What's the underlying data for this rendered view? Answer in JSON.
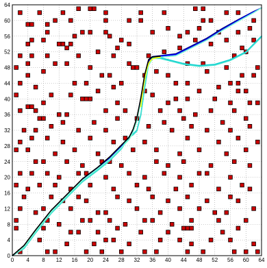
{
  "chart_data": {
    "type": "scatter",
    "title": "",
    "xlabel": "",
    "ylabel": "",
    "xlim": [
      0,
      64
    ],
    "ylim": [
      0,
      64
    ],
    "grid": true,
    "xticks": [
      "0",
      "4",
      "8",
      "12",
      "16",
      "20",
      "24",
      "28",
      "32",
      "36",
      "40",
      "44",
      "48",
      "52",
      "56",
      "60",
      "64"
    ],
    "yticks": [
      "0",
      "4",
      "8",
      "12",
      "16",
      "20",
      "24",
      "28",
      "32",
      "36",
      "40",
      "44",
      "48",
      "52",
      "56",
      "60",
      "64"
    ],
    "colors": {
      "obstacle_fill": "#cc0000",
      "obstacle_edge": "#000000",
      "paths": [
        "#00008b",
        "#0000ff",
        "#00ced1",
        "#40e0d0",
        "#7fffd4",
        "#ffff00",
        "#000000"
      ]
    },
    "obstacles": [
      [
        2,
        62
      ],
      [
        7,
        62
      ],
      [
        13,
        62
      ],
      [
        17,
        63
      ],
      [
        20,
        63
      ],
      [
        21,
        63
      ],
      [
        24,
        62
      ],
      [
        33,
        62
      ],
      [
        39,
        62
      ],
      [
        47,
        63
      ],
      [
        49,
        63
      ],
      [
        55,
        62
      ],
      [
        58,
        62
      ],
      [
        4,
        59
      ],
      [
        5,
        59
      ],
      [
        9,
        59
      ],
      [
        11,
        60
      ],
      [
        15,
        60
      ],
      [
        24,
        60
      ],
      [
        30,
        60
      ],
      [
        33,
        60
      ],
      [
        49,
        60
      ],
      [
        51,
        60
      ],
      [
        62,
        60
      ],
      [
        9,
        57
      ],
      [
        18,
        57
      ],
      [
        20,
        57
      ],
      [
        24,
        57
      ],
      [
        36,
        57
      ],
      [
        40,
        58
      ],
      [
        45,
        57
      ],
      [
        48,
        58
      ],
      [
        53,
        57
      ],
      [
        58,
        57
      ],
      [
        61,
        58
      ],
      [
        5,
        55
      ],
      [
        8,
        55
      ],
      [
        16,
        56
      ],
      [
        25,
        56
      ],
      [
        28,
        55
      ],
      [
        43,
        56
      ],
      [
        47,
        55
      ],
      [
        55,
        55
      ],
      [
        62,
        55
      ],
      [
        4,
        54
      ],
      [
        12,
        54
      ],
      [
        13,
        54
      ],
      [
        14,
        53
      ],
      [
        15,
        54
      ],
      [
        27,
        53
      ],
      [
        30,
        54
      ],
      [
        43,
        53
      ],
      [
        51,
        54
      ],
      [
        59,
        53
      ],
      [
        2,
        51
      ],
      [
        5,
        51
      ],
      [
        9,
        51
      ],
      [
        17,
        51
      ],
      [
        22,
        52
      ],
      [
        26,
        51
      ],
      [
        35,
        51
      ],
      [
        39,
        52
      ],
      [
        57,
        51
      ],
      [
        60,
        52
      ],
      [
        1,
        48
      ],
      [
        4,
        49
      ],
      [
        11,
        49
      ],
      [
        14,
        49
      ],
      [
        20,
        48
      ],
      [
        30,
        49
      ],
      [
        31,
        48
      ],
      [
        32,
        48
      ],
      [
        45,
        49
      ],
      [
        49,
        49
      ],
      [
        55,
        48
      ],
      [
        63,
        48
      ],
      [
        4,
        46
      ],
      [
        8,
        47
      ],
      [
        23,
        46
      ],
      [
        25,
        46
      ],
      [
        34,
        46
      ],
      [
        37,
        47
      ],
      [
        40,
        46
      ],
      [
        50,
        47
      ],
      [
        59,
        46
      ],
      [
        62,
        46
      ],
      [
        2,
        44
      ],
      [
        6,
        43
      ],
      [
        16,
        44
      ],
      [
        19,
        44
      ],
      [
        26,
        43
      ],
      [
        28,
        44
      ],
      [
        42,
        44
      ],
      [
        45,
        44
      ],
      [
        53,
        43
      ],
      [
        56,
        44
      ],
      [
        58,
        44
      ],
      [
        1,
        41
      ],
      [
        10,
        41
      ],
      [
        15,
        41
      ],
      [
        22,
        42
      ],
      [
        34,
        42
      ],
      [
        36,
        41
      ],
      [
        48,
        42
      ],
      [
        58,
        42
      ],
      [
        60,
        42
      ],
      [
        4,
        38
      ],
      [
        5,
        38
      ],
      [
        8,
        39
      ],
      [
        18,
        40
      ],
      [
        19,
        40
      ],
      [
        20,
        40
      ],
      [
        27,
        39
      ],
      [
        40,
        39
      ],
      [
        42,
        40
      ],
      [
        45,
        40
      ],
      [
        52,
        40
      ],
      [
        56,
        39
      ],
      [
        61,
        39
      ],
      [
        63,
        39
      ],
      [
        2,
        37
      ],
      [
        6,
        37
      ],
      [
        12,
        36
      ],
      [
        14,
        36
      ],
      [
        24,
        37
      ],
      [
        29,
        37
      ],
      [
        38,
        37
      ],
      [
        43,
        37
      ],
      [
        47,
        36
      ],
      [
        51,
        37
      ],
      [
        57,
        37
      ],
      [
        7,
        35
      ],
      [
        8,
        35
      ],
      [
        13,
        34
      ],
      [
        21,
        34
      ],
      [
        27,
        35
      ],
      [
        32,
        35
      ],
      [
        39,
        34
      ],
      [
        44,
        35
      ],
      [
        54,
        34
      ],
      [
        60,
        35
      ],
      [
        3,
        32
      ],
      [
        6,
        32
      ],
      [
        10,
        33
      ],
      [
        17,
        32
      ],
      [
        24,
        32
      ],
      [
        35,
        33
      ],
      [
        41,
        32
      ],
      [
        46,
        33
      ],
      [
        50,
        32
      ],
      [
        56,
        32
      ],
      [
        61,
        33
      ],
      [
        2,
        29
      ],
      [
        5,
        30
      ],
      [
        9,
        30
      ],
      [
        13,
        29
      ],
      [
        20,
        30
      ],
      [
        26,
        29
      ],
      [
        29,
        30
      ],
      [
        34,
        29
      ],
      [
        45,
        30
      ],
      [
        53,
        29
      ],
      [
        58,
        30
      ],
      [
        63,
        29
      ],
      [
        1,
        27
      ],
      [
        4,
        27
      ],
      [
        11,
        26
      ],
      [
        16,
        27
      ],
      [
        22,
        26
      ],
      [
        31,
        27
      ],
      [
        37,
        27
      ],
      [
        43,
        26
      ],
      [
        48,
        27
      ],
      [
        55,
        26
      ],
      [
        60,
        27
      ],
      [
        6,
        24
      ],
      [
        8,
        24
      ],
      [
        14,
        24
      ],
      [
        18,
        23
      ],
      [
        23,
        24
      ],
      [
        25,
        24
      ],
      [
        28,
        23
      ],
      [
        37,
        24
      ],
      [
        40,
        23
      ],
      [
        44,
        24
      ],
      [
        51,
        23
      ],
      [
        57,
        24
      ],
      [
        61,
        23
      ],
      [
        2,
        21
      ],
      [
        5,
        21
      ],
      [
        9,
        21
      ],
      [
        12,
        20
      ],
      [
        17,
        21
      ],
      [
        19,
        21
      ],
      [
        24,
        20
      ],
      [
        30,
        21
      ],
      [
        34,
        20
      ],
      [
        39,
        21
      ],
      [
        43,
        20
      ],
      [
        48,
        21
      ],
      [
        50,
        21
      ],
      [
        56,
        20
      ],
      [
        1,
        18
      ],
      [
        4,
        17
      ],
      [
        7,
        18
      ],
      [
        11,
        18
      ],
      [
        15,
        17
      ],
      [
        20,
        18
      ],
      [
        26,
        17
      ],
      [
        32,
        18
      ],
      [
        35,
        17
      ],
      [
        42,
        17
      ],
      [
        46,
        18
      ],
      [
        53,
        17
      ],
      [
        59,
        18
      ],
      [
        61,
        17
      ],
      [
        3,
        15
      ],
      [
        10,
        15
      ],
      [
        13,
        14
      ],
      [
        17,
        15
      ],
      [
        19,
        14
      ],
      [
        27,
        15
      ],
      [
        30,
        14
      ],
      [
        36,
        15
      ],
      [
        40,
        14
      ],
      [
        45,
        15
      ],
      [
        50,
        14
      ],
      [
        56,
        15
      ],
      [
        58,
        14
      ],
      [
        2,
        12
      ],
      [
        6,
        11
      ],
      [
        8,
        12
      ],
      [
        15,
        12
      ],
      [
        22,
        11
      ],
      [
        24,
        11
      ],
      [
        32,
        12
      ],
      [
        38,
        11
      ],
      [
        43,
        12
      ],
      [
        48,
        12
      ],
      [
        52,
        11
      ],
      [
        55,
        11
      ],
      [
        62,
        12
      ],
      [
        1,
        9
      ],
      [
        9,
        9
      ],
      [
        12,
        8
      ],
      [
        18,
        9
      ],
      [
        20,
        9
      ],
      [
        25,
        9
      ],
      [
        29,
        8
      ],
      [
        34,
        9
      ],
      [
        36,
        9
      ],
      [
        41,
        8
      ],
      [
        46,
        9
      ],
      [
        53,
        9
      ],
      [
        60,
        9
      ],
      [
        1,
        7
      ],
      [
        8,
        7
      ],
      [
        15,
        6
      ],
      [
        17,
        6
      ],
      [
        22,
        6
      ],
      [
        27,
        7
      ],
      [
        33,
        6
      ],
      [
        40,
        6
      ],
      [
        44,
        7
      ],
      [
        45,
        7
      ],
      [
        46,
        7
      ],
      [
        54,
        6
      ],
      [
        58,
        7
      ],
      [
        7,
        4
      ],
      [
        14,
        3
      ],
      [
        21,
        3
      ],
      [
        24,
        4
      ],
      [
        26,
        4
      ],
      [
        30,
        3
      ],
      [
        38,
        4
      ],
      [
        43,
        4
      ],
      [
        46,
        3
      ],
      [
        51,
        4
      ],
      [
        56,
        4
      ],
      [
        62,
        3
      ],
      [
        2,
        1
      ],
      [
        9,
        1
      ],
      [
        11,
        1
      ],
      [
        19,
        1
      ],
      [
        23,
        1
      ],
      [
        28,
        1
      ],
      [
        34,
        1
      ],
      [
        37,
        1
      ],
      [
        45,
        1
      ],
      [
        49,
        1
      ],
      [
        57,
        1
      ],
      [
        60,
        1
      ],
      [
        63,
        1
      ]
    ],
    "series": [
      {
        "x": [
          0,
          3,
          6,
          10,
          14,
          18,
          22,
          25,
          28,
          30,
          31,
          32,
          33,
          34,
          35,
          36,
          38,
          42,
          46,
          50,
          54,
          58,
          62,
          64
        ],
        "y": [
          0,
          2.5,
          6.5,
          11.5,
          15.5,
          19.5,
          22.5,
          25,
          28,
          30,
          32,
          35,
          40,
          46,
          50,
          50.8,
          51,
          51.5,
          53.5,
          55.5,
          58,
          60.2,
          62.3,
          63.2
        ]
      },
      {
        "x": [
          0,
          3,
          6,
          10,
          14,
          18,
          22,
          25,
          28,
          30,
          31,
          32,
          33,
          34,
          35,
          36,
          38,
          42,
          46,
          50,
          54,
          58,
          62,
          64
        ],
        "y": [
          0,
          2.4,
          6.4,
          11.4,
          15.4,
          19.4,
          22.4,
          24.9,
          27.9,
          29.9,
          31.8,
          34.8,
          39.8,
          45.5,
          49.6,
          50.6,
          50.9,
          51.3,
          53.2,
          55.2,
          57.7,
          60,
          62.2,
          63.2
        ]
      },
      {
        "x": [
          0,
          3,
          6,
          10,
          14,
          18,
          22,
          25,
          28,
          30,
          31,
          32,
          33,
          34,
          35,
          36,
          38,
          40,
          44,
          48,
          52,
          56,
          60,
          64
        ],
        "y": [
          0,
          2,
          6,
          11,
          15,
          19,
          22,
          24.4,
          27.4,
          30.4,
          31,
          32,
          36,
          43,
          49,
          50.5,
          50.5,
          50,
          49,
          48.5,
          48.8,
          50,
          52,
          56
        ]
      },
      {
        "x": [
          0,
          3,
          6,
          10,
          14,
          18,
          22,
          25,
          28,
          30,
          31,
          32,
          33,
          34,
          35,
          36,
          38,
          40,
          44,
          48,
          52,
          56,
          60,
          64
        ],
        "y": [
          0,
          1.8,
          5.8,
          10.8,
          14.8,
          18.8,
          21.8,
          24.2,
          27.2,
          30.2,
          30.8,
          31.8,
          35.8,
          42.8,
          48.8,
          50.3,
          50.3,
          49.8,
          48.8,
          48.3,
          48.6,
          49.8,
          51.8,
          55.8
        ]
      },
      {
        "x": [
          0,
          3,
          6,
          10,
          14,
          18,
          22,
          25,
          28,
          30,
          31,
          32,
          33,
          34,
          35,
          36,
          38,
          42,
          46,
          50,
          54,
          58,
          62,
          64
        ],
        "y": [
          0,
          2.2,
          6.2,
          11.2,
          15.2,
          19.2,
          22.2,
          24.6,
          27.6,
          29.6,
          31.5,
          34.5,
          39.5,
          45,
          48.6,
          50.2,
          50.6,
          51,
          53,
          55,
          57.5,
          59.8,
          62,
          63.2
        ]
      },
      {
        "x": [
          33,
          33.5,
          34,
          34.5,
          35,
          35.5,
          36,
          37,
          38
        ],
        "y": [
          38,
          42,
          45,
          47.5,
          49,
          49.8,
          50.2,
          50.5,
          50.6
        ]
      },
      {
        "x": [
          0,
          3,
          6,
          10,
          14,
          18,
          22,
          25,
          28,
          30,
          31,
          32,
          33,
          34,
          35,
          36,
          38
        ],
        "y": [
          0,
          2.6,
          6.6,
          11.6,
          15.6,
          19.6,
          22.6,
          25.2,
          28.2,
          30.2,
          32.2,
          35.2,
          40.2,
          46.2,
          50,
          50.7,
          50.9
        ]
      }
    ]
  }
}
